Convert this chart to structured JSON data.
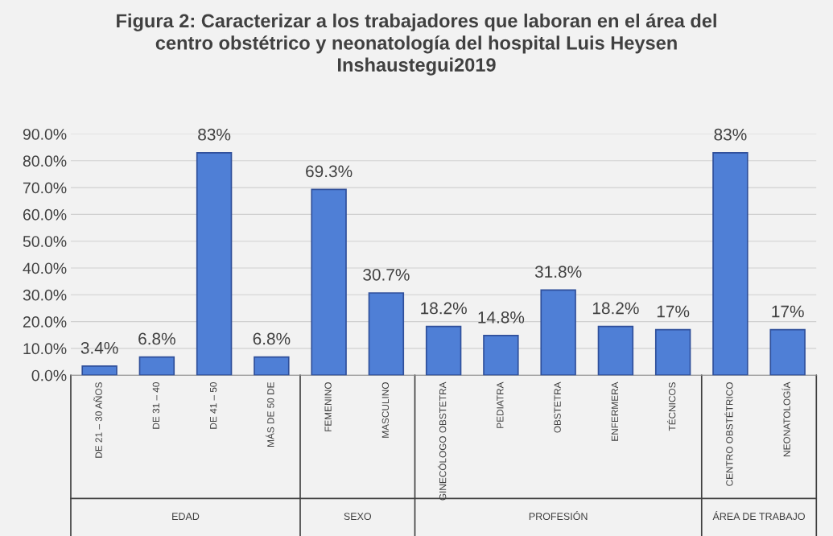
{
  "chart_data": {
    "type": "bar",
    "title": "Figura 2: Caracterizar a los trabajadores que laboran en el área del\ncentro obstétrico y neonatología del hospital Luis Heysen\nInshaustegui2019",
    "categories": [
      "DE 21 – 30 AÑOS",
      "DE 31 – 40",
      "DE 41 – 50",
      "MÁS DE 50 DE",
      "FEMENINO",
      "MASCULINO",
      "GINECÓLOGO OBSTETRA",
      "PEDIATRA",
      "OBSTETRA",
      "ENFERMERA",
      "TÉCNICOS",
      "CENTRO OBSTÉTRICO",
      "NEONATOLOGÍA"
    ],
    "values": [
      3.4,
      6.8,
      83,
      6.8,
      69.3,
      30.7,
      18.2,
      14.8,
      31.8,
      18.2,
      17,
      83,
      17
    ],
    "value_labels": [
      "3.4%",
      "6.8%",
      "83%",
      "6.8%",
      "69.3%",
      "30.7%",
      "18.2%",
      "14.8%",
      "31.8%",
      "18.2%",
      "17%",
      "83%",
      "17%"
    ],
    "color": "#4f7fd6",
    "ylim": [
      0,
      90
    ],
    "yticks": [
      {
        "value": 0,
        "label": "0.0%"
      },
      {
        "value": 10,
        "label": "10.0%"
      },
      {
        "value": 20,
        "label": "20.0%"
      },
      {
        "value": 30,
        "label": "30.0%"
      },
      {
        "value": 40,
        "label": "40.0%"
      },
      {
        "value": 50,
        "label": "50.0%"
      },
      {
        "value": 60,
        "label": "60.0%"
      },
      {
        "value": 70,
        "label": "70.0%"
      },
      {
        "value": 80,
        "label": "80.0%"
      },
      {
        "value": 90,
        "label": "90.0%"
      }
    ],
    "grid": "y",
    "annotations": [
      "EDAD",
      "SEXO",
      "PROFESIÓN",
      "ÁREA DE TRABAJO"
    ]
  }
}
